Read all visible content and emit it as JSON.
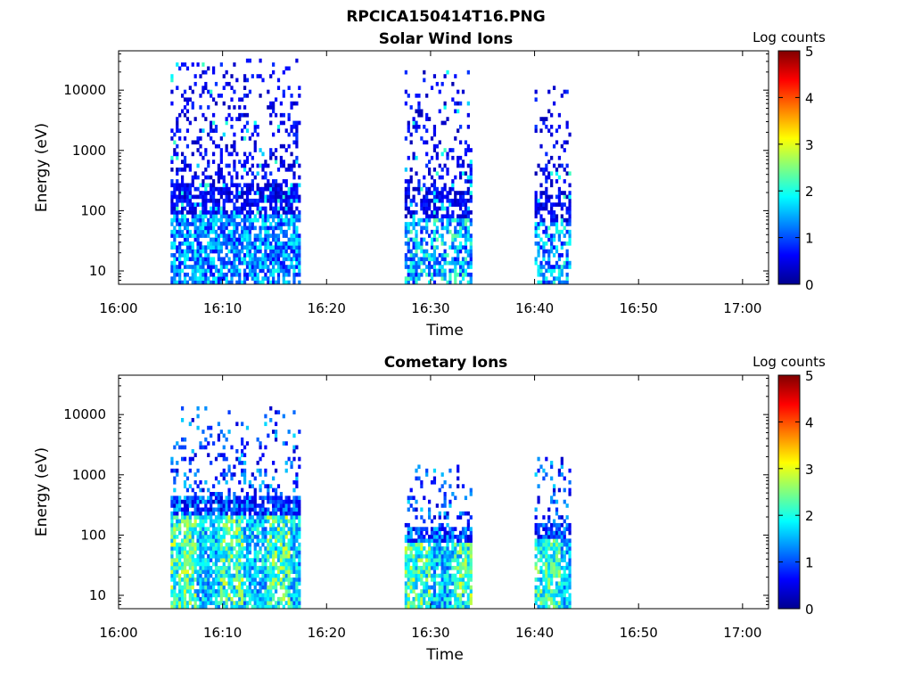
{
  "figure": {
    "title": "RPCICA150414T16.PNG"
  },
  "chart_data": [
    {
      "type": "heatmap",
      "title": "Solar Wind Ions",
      "xlabel": "Time",
      "ylabel": "Energy (eV)",
      "x_ticks": [
        "16:00",
        "16:10",
        "16:20",
        "16:30",
        "16:40",
        "16:50",
        "17:00"
      ],
      "y_ticks": [
        "10",
        "100",
        "1000",
        "10000"
      ],
      "y_scale": "log",
      "ylim": [
        6,
        45000
      ],
      "xlim_minutes": [
        0,
        62.5
      ],
      "colorbar": {
        "label": "Log counts",
        "ticks": [
          "0",
          "1",
          "2",
          "3",
          "4",
          "5"
        ],
        "range": [
          0,
          5
        ],
        "colormap": "jet"
      },
      "bursts": [
        {
          "start_min": 5.0,
          "end_min": 17.5,
          "max_energy_ev": 30000,
          "peak_log_counts": 2.0
        },
        {
          "start_min": 27.5,
          "end_min": 34.0,
          "max_energy_ev": 20000,
          "peak_log_counts": 2.4
        },
        {
          "start_min": 40.0,
          "end_min": 43.5,
          "max_energy_ev": 13000,
          "peak_log_counts": 2.2
        }
      ]
    },
    {
      "type": "heatmap",
      "title": "Cometary Ions",
      "xlabel": "Time",
      "ylabel": "Energy (eV)",
      "x_ticks": [
        "16:00",
        "16:10",
        "16:20",
        "16:30",
        "16:40",
        "16:50",
        "17:00"
      ],
      "y_ticks": [
        "10",
        "100",
        "1000",
        "10000"
      ],
      "y_scale": "log",
      "ylim": [
        6,
        45000
      ],
      "xlim_minutes": [
        0,
        62.5
      ],
      "colorbar": {
        "label": "Log counts",
        "ticks": [
          "0",
          "1",
          "2",
          "3",
          "4",
          "5"
        ],
        "range": [
          0,
          5
        ],
        "colormap": "jet"
      },
      "bursts": [
        {
          "start_min": 5.0,
          "end_min": 17.5,
          "max_energy_ev": 13000,
          "peak_log_counts": 3.0
        },
        {
          "start_min": 27.5,
          "end_min": 34.0,
          "max_energy_ev": 1400,
          "peak_log_counts": 3.0
        },
        {
          "start_min": 40.0,
          "end_min": 43.5,
          "max_energy_ev": 1800,
          "peak_log_counts": 2.8
        }
      ]
    }
  ]
}
